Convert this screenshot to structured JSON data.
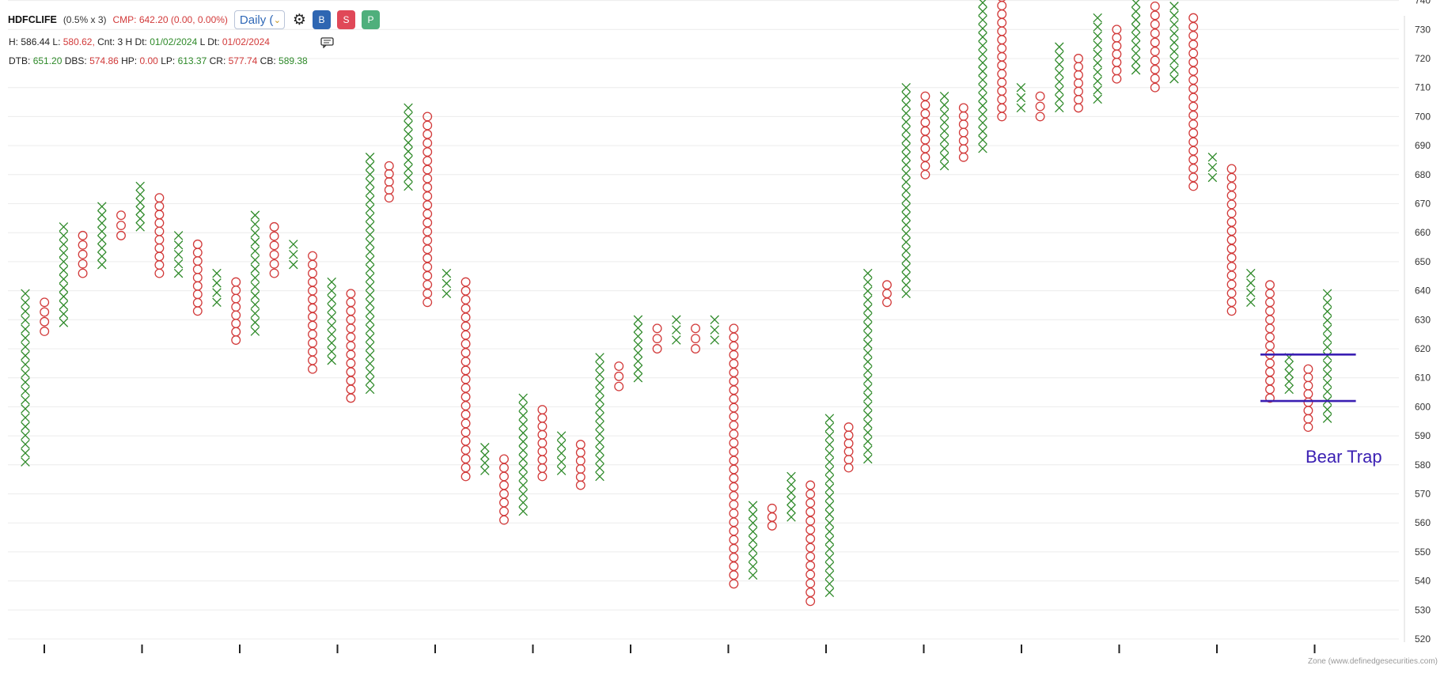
{
  "header": {
    "symbol": "HDFCLIFE",
    "box_info": "(0.5% x 3)",
    "cmp": "CMP: 642.20 (0.00, 0.00%)",
    "timeframe": "Daily (",
    "btn_b": "B",
    "btn_s": "S",
    "btn_p": "P"
  },
  "stats1": {
    "h_label": "H:",
    "h_val": "586.44",
    "l_label": "L:",
    "l_val": "580.62,",
    "cnt_label": "Cnt:",
    "cnt_val": "3 H",
    "dt_label": "Dt:",
    "dt_val": "01/02/2024",
    "ldt_label": "L Dt:",
    "ldt_val": "01/02/2024"
  },
  "stats2": {
    "dtb_label": "DTB:",
    "dtb_val": "651.20",
    "dbs_label": "DBS:",
    "dbs_val": "574.86",
    "hp_label": "HP:",
    "hp_val": "0.00",
    "lp_label": "LP:",
    "lp_val": "613.37",
    "cr_label": "CR:",
    "cr_val": "577.74",
    "cb_label": "CB:",
    "cb_val": "589.38"
  },
  "watermark": "Zone (www.definedgesecurities.com)",
  "colors": {
    "x": "#2f8a2a",
    "o": "#d23a3a",
    "bear_trap": "#3a1fb3",
    "grid": "#ececec"
  },
  "chart_data": {
    "type": "point_and_figure",
    "ylim": [
      520,
      760
    ],
    "yticks": [
      520,
      530,
      540,
      550,
      560,
      570,
      580,
      590,
      600,
      610,
      620,
      630,
      640,
      650,
      660,
      670,
      680,
      690,
      700,
      710,
      720,
      730,
      740,
      750,
      760
    ],
    "grid": true,
    "columns": [
      {
        "type": "X",
        "low": 581,
        "high": 639
      },
      {
        "type": "O",
        "low": 626,
        "high": 636
      },
      {
        "type": "X",
        "low": 629,
        "high": 662
      },
      {
        "type": "O",
        "low": 646,
        "high": 659
      },
      {
        "type": "X",
        "low": 649,
        "high": 669
      },
      {
        "type": "O",
        "low": 659,
        "high": 666
      },
      {
        "type": "X",
        "low": 662,
        "high": 676
      },
      {
        "type": "O",
        "low": 646,
        "high": 672
      },
      {
        "type": "X",
        "low": 646,
        "high": 659
      },
      {
        "type": "O",
        "low": 633,
        "high": 656
      },
      {
        "type": "X",
        "low": 636,
        "high": 646
      },
      {
        "type": "O",
        "low": 623,
        "high": 643
      },
      {
        "type": "X",
        "low": 626,
        "high": 666
      },
      {
        "type": "O",
        "low": 646,
        "high": 662
      },
      {
        "type": "X",
        "low": 649,
        "high": 656
      },
      {
        "type": "O",
        "low": 613,
        "high": 652
      },
      {
        "type": "X",
        "low": 616,
        "high": 643
      },
      {
        "type": "O",
        "low": 603,
        "high": 639
      },
      {
        "type": "X",
        "low": 606,
        "high": 686
      },
      {
        "type": "O",
        "low": 672,
        "high": 683
      },
      {
        "type": "X",
        "low": 676,
        "high": 703
      },
      {
        "type": "O",
        "low": 636,
        "high": 700
      },
      {
        "type": "X",
        "low": 639,
        "high": 646
      },
      {
        "type": "O",
        "low": 576,
        "high": 643
      },
      {
        "type": "X",
        "low": 578,
        "high": 586
      },
      {
        "type": "O",
        "low": 561,
        "high": 582
      },
      {
        "type": "X",
        "low": 564,
        "high": 603
      },
      {
        "type": "O",
        "low": 576,
        "high": 599
      },
      {
        "type": "X",
        "low": 578,
        "high": 590
      },
      {
        "type": "O",
        "low": 573,
        "high": 587
      },
      {
        "type": "X",
        "low": 576,
        "high": 617
      },
      {
        "type": "O",
        "low": 607,
        "high": 614
      },
      {
        "type": "X",
        "low": 610,
        "high": 630
      },
      {
        "type": "O",
        "low": 620,
        "high": 627
      },
      {
        "type": "X",
        "low": 623,
        "high": 630
      },
      {
        "type": "O",
        "low": 620,
        "high": 627
      },
      {
        "type": "X",
        "low": 623,
        "high": 630
      },
      {
        "type": "O",
        "low": 539,
        "high": 627
      },
      {
        "type": "X",
        "low": 542,
        "high": 566
      },
      {
        "type": "O",
        "low": 559,
        "high": 565
      },
      {
        "type": "X",
        "low": 562,
        "high": 576
      },
      {
        "type": "O",
        "low": 533,
        "high": 573
      },
      {
        "type": "X",
        "low": 536,
        "high": 596
      },
      {
        "type": "O",
        "low": 579,
        "high": 593
      },
      {
        "type": "X",
        "low": 582,
        "high": 646
      },
      {
        "type": "O",
        "low": 636,
        "high": 642
      },
      {
        "type": "X",
        "low": 639,
        "high": 710
      },
      {
        "type": "O",
        "low": 680,
        "high": 707
      },
      {
        "type": "X",
        "low": 683,
        "high": 707
      },
      {
        "type": "O",
        "low": 686,
        "high": 703
      },
      {
        "type": "X",
        "low": 689,
        "high": 754
      },
      {
        "type": "O",
        "low": 700,
        "high": 750
      },
      {
        "type": "X",
        "low": 703,
        "high": 710
      },
      {
        "type": "O",
        "low": 700,
        "high": 707
      },
      {
        "type": "X",
        "low": 703,
        "high": 724
      },
      {
        "type": "O",
        "low": 703,
        "high": 720
      },
      {
        "type": "X",
        "low": 706,
        "high": 734
      },
      {
        "type": "O",
        "low": 713,
        "high": 730
      },
      {
        "type": "X",
        "low": 716,
        "high": 742
      },
      {
        "type": "O",
        "low": 710,
        "high": 738
      },
      {
        "type": "X",
        "low": 713,
        "high": 738
      },
      {
        "type": "O",
        "low": 676,
        "high": 734
      },
      {
        "type": "X",
        "low": 679,
        "high": 686
      },
      {
        "type": "O",
        "low": 633,
        "high": 682
      },
      {
        "type": "X",
        "low": 636,
        "high": 646
      },
      {
        "type": "O",
        "low": 603,
        "high": 642
      },
      {
        "type": "X",
        "low": 606,
        "high": 617
      },
      {
        "type": "O",
        "low": 593,
        "high": 613
      },
      {
        "type": "X",
        "low": 596,
        "high": 639
      }
    ],
    "annotation": {
      "text": "Bear Trap",
      "lines": [
        {
          "from_col": 65,
          "to_col": 68,
          "value": 618
        },
        {
          "from_col": 65,
          "to_col": 68,
          "value": 602
        }
      ]
    }
  }
}
